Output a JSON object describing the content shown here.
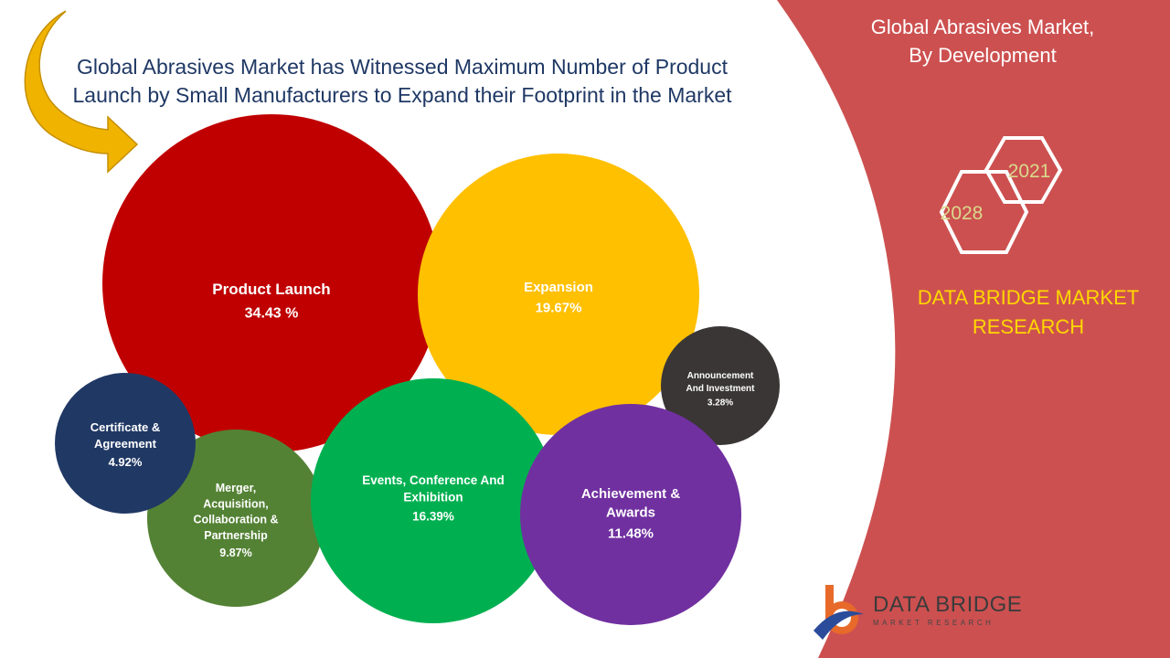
{
  "headline": {
    "line1": "Global Abrasives Market has Witnessed Maximum Number of Product",
    "line2": "Launch by Small Manufacturers to Expand their Footprint in the Market"
  },
  "side_panel": {
    "title_line1": "Global Abrasives Market,",
    "title_line2": "By Development",
    "year_start": "2021",
    "year_end": "2028",
    "brand_line1": "DATA BRIDGE MARKET",
    "brand_line2": "RESEARCH",
    "panel_color": "#cd5050"
  },
  "logo": {
    "name": "DATA BRIDGE",
    "sub": "MARKET RESEARCH",
    "icon": "data-bridge-logo-icon"
  },
  "chart_data": {
    "type": "bubble",
    "title": "Global Abrasives Market has Witnessed Maximum Number of Product Launch by Small Manufacturers to Expand their Footprint in the Market",
    "unit": "%",
    "series": [
      {
        "key": "product-launch",
        "label_lines": [
          "Product Launch"
        ],
        "value_label": "34.43 %",
        "value": 34.43,
        "color": "#c00000"
      },
      {
        "key": "expansion",
        "label_lines": [
          "Expansion"
        ],
        "value_label": "19.67%",
        "value": 19.67,
        "color": "#ffc000"
      },
      {
        "key": "announcement-and-investment",
        "label_lines": [
          "Announcement",
          "And Investment"
        ],
        "value_label": "3.28%",
        "value": 3.28,
        "color": "#3a3636"
      },
      {
        "key": "merger-acquisition-collaboration-partnership",
        "label_lines": [
          "Merger,",
          "Acquisition,",
          "Collaboration &",
          "Partnership"
        ],
        "value_label": "9.87%",
        "value": 9.87,
        "color": "#548235"
      },
      {
        "key": "certificate-and-agreement",
        "label_lines": [
          "Certificate &",
          "Agreement"
        ],
        "value_label": "4.92%",
        "value": 4.92,
        "color": "#203864"
      },
      {
        "key": "events-conference-and-exhibition",
        "label_lines": [
          "Events, Conference And",
          "Exhibition"
        ],
        "value_label": "16.39%",
        "value": 16.39,
        "color": "#00b050"
      },
      {
        "key": "achievement-and-awards",
        "label_lines": [
          "Achievement &",
          "Awards"
        ],
        "value_label": "11.48%",
        "value": 11.48,
        "color": "#7030a0"
      }
    ]
  }
}
